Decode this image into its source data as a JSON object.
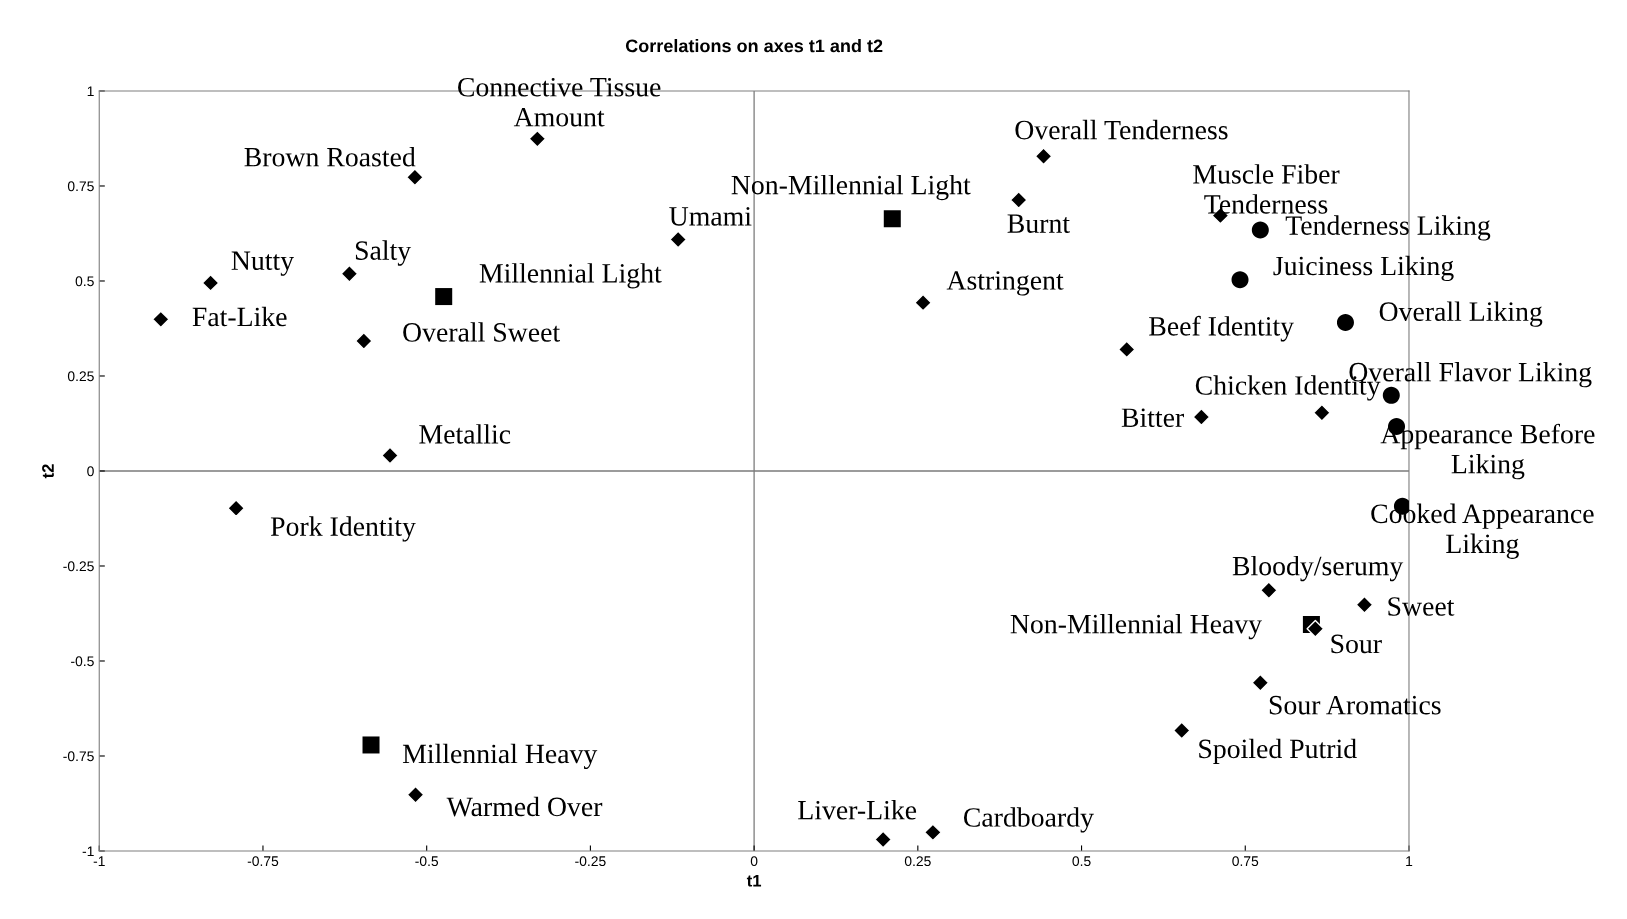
{
  "chart_data": {
    "type": "scatter",
    "title": "Correlations on axes t1 and t2",
    "xlabel": "t1",
    "ylabel": "t2",
    "xlim": [
      -1,
      1
    ],
    "ylim": [
      -1,
      1
    ],
    "xticks": [
      -1,
      -0.75,
      -0.5,
      -0.25,
      0,
      0.25,
      0.5,
      0.75,
      1
    ],
    "yticks": [
      -1,
      -0.75,
      -0.5,
      -0.25,
      0,
      0.25,
      0.5,
      0.75,
      1
    ],
    "grid": false,
    "ref_lines": [
      {
        "axis": "x",
        "value": 0,
        "color": "#868686"
      },
      {
        "axis": "y",
        "value": 0,
        "color": "#7a7a7a"
      }
    ],
    "series": [
      {
        "color": "#000000",
        "marker": "diamond",
        "x": [
          -0.331,
          -0.518,
          -0.116,
          -0.83,
          -0.618,
          -0.906,
          -0.596,
          -0.556,
          -0.791,
          -0.517,
          0.197,
          0.273,
          0.442,
          0.404,
          0.258,
          0.712,
          0.569,
          0.683,
          0.867,
          0.786,
          0.932,
          0.857,
          0.773,
          0.653
        ],
        "values": [
          0.874,
          0.773,
          0.609,
          0.495,
          0.519,
          0.399,
          0.342,
          0.041,
          -0.098,
          -0.852,
          -0.97,
          -0.951,
          0.828,
          0.713,
          0.443,
          0.672,
          0.32,
          0.142,
          0.153,
          -0.314,
          -0.352,
          -0.415,
          -0.557,
          -0.683
        ]
      },
      {
        "color": "#000000",
        "marker": "square",
        "x": [
          0.211,
          -0.474,
          0.851,
          -0.585
        ],
        "values": [
          0.664,
          0.459,
          -0.404,
          -0.721
        ]
      },
      {
        "color": "#000000",
        "marker": "circle",
        "x": [
          0.773,
          0.742,
          0.903,
          0.973,
          0.981,
          0.99
        ],
        "values": [
          0.634,
          0.503,
          0.391,
          0.199,
          0.117,
          -0.093
        ]
      }
    ],
    "annotations": [
      {
        "text": "Connective Tissue\nAmount",
        "x": -0.331,
        "y": 0.874
      },
      {
        "text": "Brown Roasted",
        "x": -0.518,
        "y": 0.773
      },
      {
        "text": "Umami",
        "x": -0.116,
        "y": 0.609
      },
      {
        "text": "Nutty",
        "x": -0.83,
        "y": 0.495
      },
      {
        "text": "Salty",
        "x": -0.618,
        "y": 0.519
      },
      {
        "text": "Fat-Like",
        "x": -0.906,
        "y": 0.399
      },
      {
        "text": "Overall Sweet",
        "x": -0.596,
        "y": 0.342
      },
      {
        "text": "Metallic",
        "x": -0.556,
        "y": 0.041
      },
      {
        "text": "Pork Identity",
        "x": -0.791,
        "y": -0.098
      },
      {
        "text": "Warmed Over",
        "x": -0.517,
        "y": -0.852
      },
      {
        "text": "Liver-Like",
        "x": 0.197,
        "y": -0.97
      },
      {
        "text": "Cardboardy",
        "x": 0.273,
        "y": -0.951
      },
      {
        "text": "Overall Tenderness",
        "x": 0.442,
        "y": 0.828
      },
      {
        "text": "Burnt",
        "x": 0.404,
        "y": 0.713
      },
      {
        "text": "Astringent",
        "x": 0.258,
        "y": 0.443
      },
      {
        "text": "Muscle Fiber\nTenderness",
        "x": 0.712,
        "y": 0.672
      },
      {
        "text": "Beef Identity",
        "x": 0.569,
        "y": 0.32
      },
      {
        "text": "Bitter",
        "x": 0.683,
        "y": 0.142
      },
      {
        "text": "Chicken Identity",
        "x": 0.867,
        "y": 0.153
      },
      {
        "text": "Bloody/serumy",
        "x": 0.786,
        "y": -0.314
      },
      {
        "text": "Sweet",
        "x": 0.932,
        "y": -0.352
      },
      {
        "text": "Sour",
        "x": 0.857,
        "y": -0.415
      },
      {
        "text": "Sour Aromatics",
        "x": 0.773,
        "y": -0.557
      },
      {
        "text": "Spoiled Putrid",
        "x": 0.653,
        "y": -0.683
      },
      {
        "text": "Non-Millennial Light",
        "x": 0.211,
        "y": 0.664
      },
      {
        "text": "Millennial Light",
        "x": -0.474,
        "y": 0.459
      },
      {
        "text": "Non-Millennial Heavy",
        "x": 0.851,
        "y": -0.404
      },
      {
        "text": "Millennial Heavy",
        "x": -0.585,
        "y": -0.721
      },
      {
        "text": "Tenderness Liking",
        "x": 0.773,
        "y": 0.634
      },
      {
        "text": "Juiciness Liking",
        "x": 0.742,
        "y": 0.503
      },
      {
        "text": "Overall Liking",
        "x": 0.903,
        "y": 0.391
      },
      {
        "text": "Overall Flavor Liking",
        "x": 0.973,
        "y": 0.199
      },
      {
        "text": "Appearance Before\nLiking",
        "x": 0.981,
        "y": 0.117
      },
      {
        "text": "Cooked Appearance\nLiking",
        "x": 0.99,
        "y": -0.093
      }
    ]
  }
}
